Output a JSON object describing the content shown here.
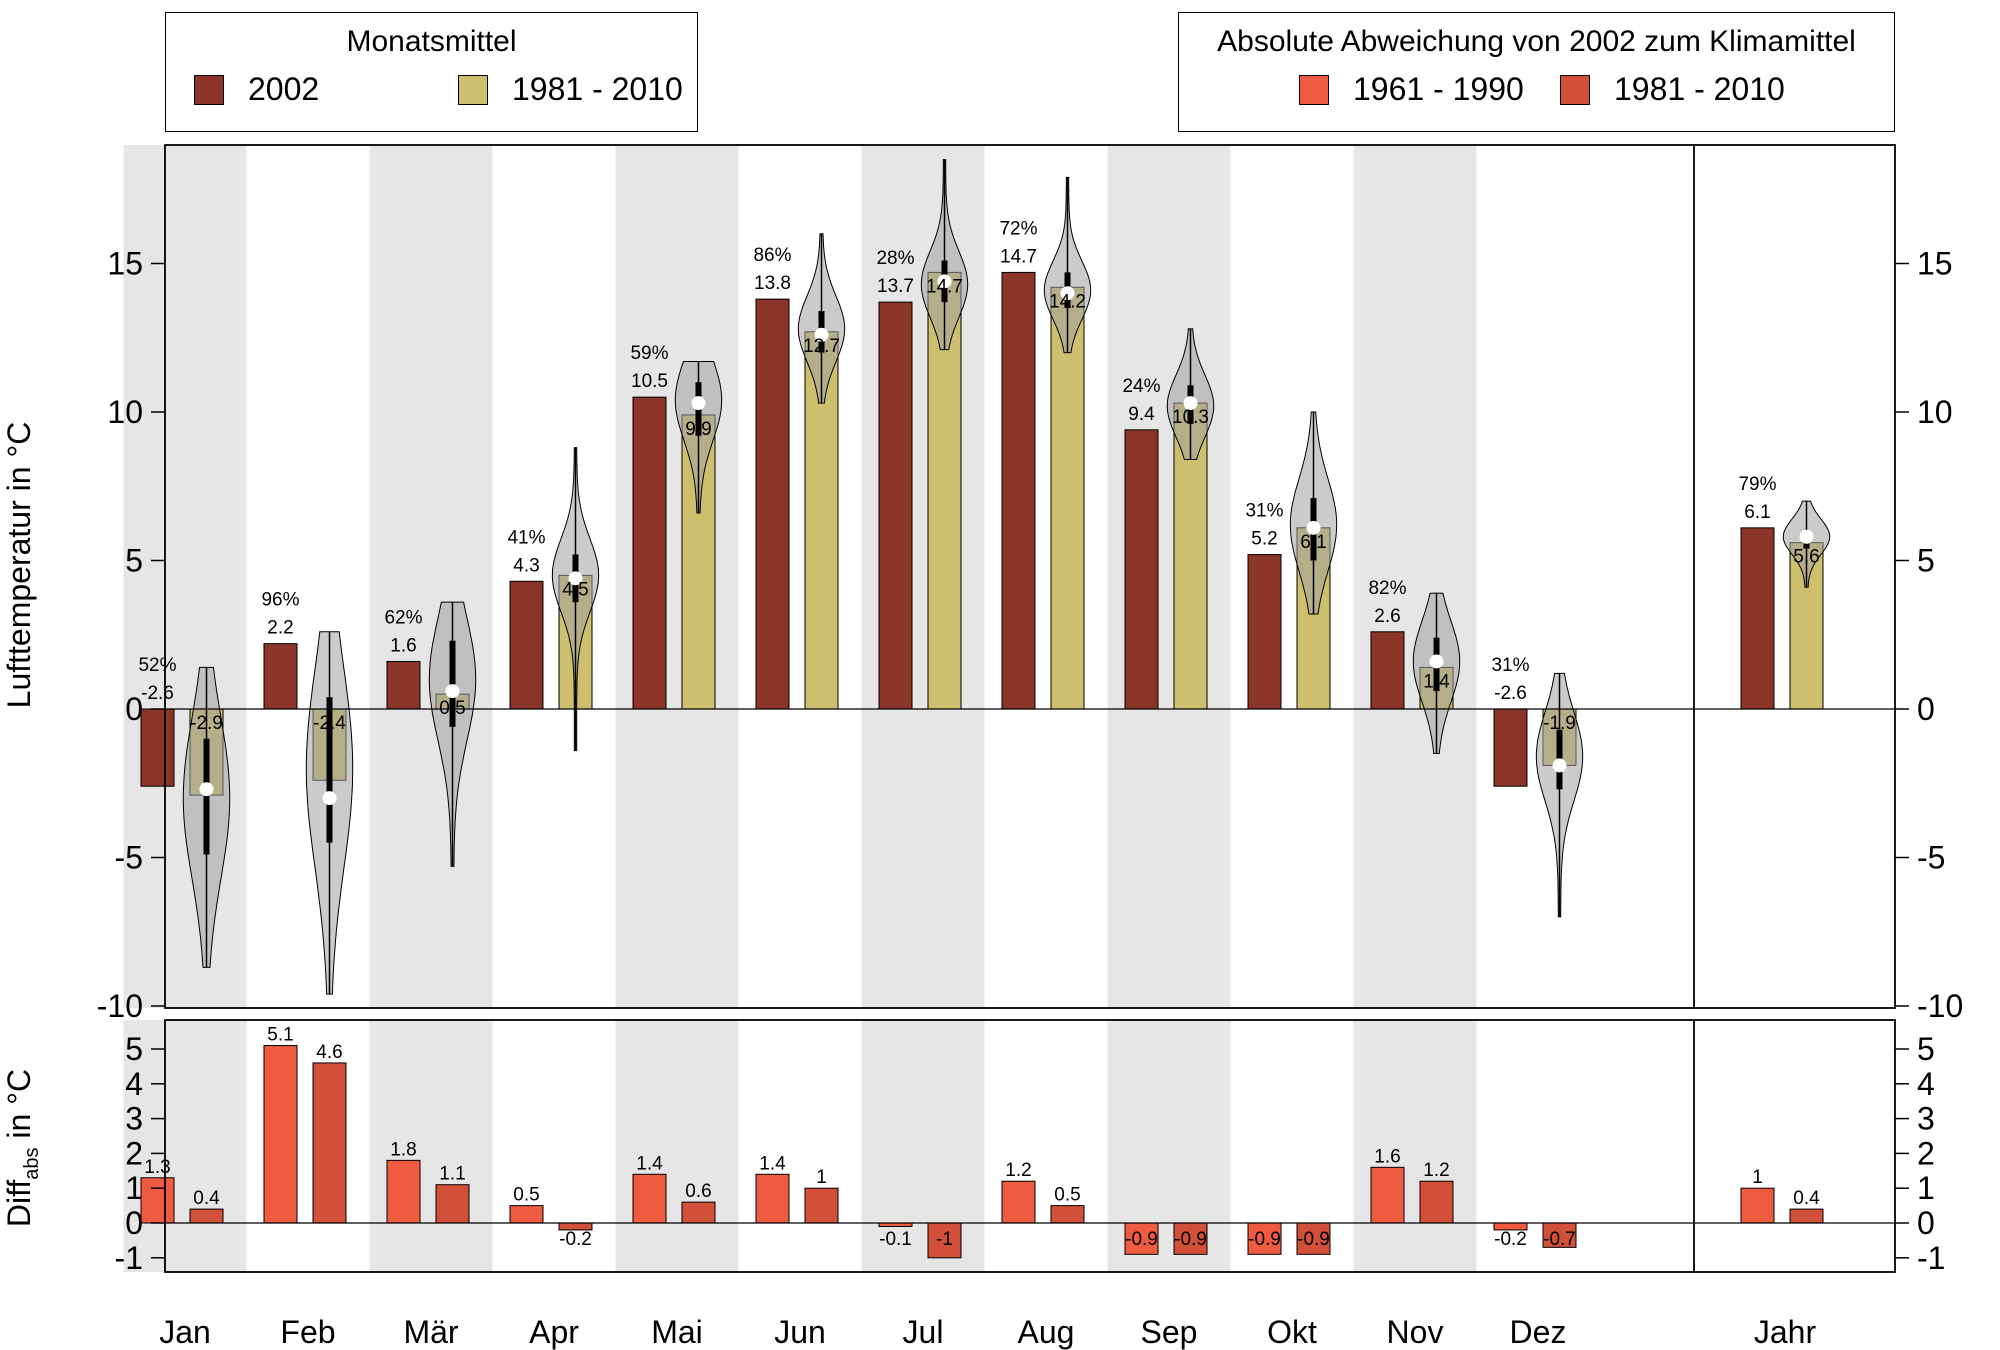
{
  "legend_left": {
    "title": "Monatsmittel",
    "items": [
      {
        "label": "2002",
        "color": "#8b3428"
      },
      {
        "label": "1981 - 2010",
        "color": "#cdbf6e"
      }
    ]
  },
  "legend_right": {
    "title": "Absolute Abweichung von 2002 zum Klimamittel",
    "items": [
      {
        "label": "1961 - 1990",
        "color": "#ef5b40"
      },
      {
        "label": "1981 - 2010",
        "color": "#d2503a"
      }
    ]
  },
  "axis": {
    "y_main_label": "Lufttemperatur in °C",
    "y_diff_label_main": "Diff",
    "y_diff_label_sub": "abs",
    "y_diff_label_unit": " in °C"
  },
  "chart_data": [
    {
      "type": "bar",
      "categories": [
        "Jan",
        "Feb",
        "Mär",
        "Apr",
        "Mai",
        "Jun",
        "Jul",
        "Aug",
        "Sep",
        "Okt",
        "Nov",
        "Dez",
        "Jahr"
      ],
      "ylim": [
        -10,
        18.5
      ],
      "yticks": [
        -10,
        -5,
        0,
        5,
        10,
        15
      ],
      "series": [
        {
          "name": "2002",
          "color": "#8b3428",
          "values": [
            -2.6,
            2.2,
            1.6,
            4.3,
            10.5,
            13.8,
            13.7,
            14.7,
            9.4,
            5.2,
            2.6,
            -2.6,
            6.1
          ]
        },
        {
          "name": "1981 - 2010",
          "color": "#cdbf6e",
          "values": [
            -2.9,
            -2.4,
            0.5,
            4.5,
            9.9,
            12.7,
            14.7,
            14.2,
            10.3,
            6.1,
            1.4,
            -1.9,
            5.6
          ]
        }
      ],
      "percentiles": [
        "52%",
        "96%",
        "62%",
        "41%",
        "59%",
        "86%",
        "28%",
        "72%",
        "24%",
        "31%",
        "82%",
        "31%",
        "79%"
      ],
      "violins": [
        {
          "min": -8.7,
          "max": 1.4,
          "median": -2.7,
          "q1": -4.9,
          "q3": -1.0,
          "peak": -3.0
        },
        {
          "min": -9.6,
          "max": 2.6,
          "median": -3.0,
          "q1": -4.5,
          "q3": 0.4,
          "peak": -2.0
        },
        {
          "min": -5.3,
          "max": 3.6,
          "median": 0.6,
          "q1": -0.6,
          "q3": 2.3,
          "peak": 1.0
        },
        {
          "min": -1.4,
          "max": 8.8,
          "median": 4.4,
          "q1": 3.6,
          "q3": 5.2,
          "peak": 4.5
        },
        {
          "min": 6.6,
          "max": 11.7,
          "median": 10.3,
          "q1": 9.2,
          "q3": 11.0,
          "peak": 10.4
        },
        {
          "min": 10.3,
          "max": 16.0,
          "median": 12.6,
          "q1": 12.0,
          "q3": 13.4,
          "peak": 12.8
        },
        {
          "min": 12.1,
          "max": 18.5,
          "median": 14.4,
          "q1": 13.7,
          "q3": 15.1,
          "peak": 14.3
        },
        {
          "min": 12.0,
          "max": 17.9,
          "median": 14.0,
          "q1": 13.5,
          "q3": 14.7,
          "peak": 14.1
        },
        {
          "min": 8.4,
          "max": 12.8,
          "median": 10.3,
          "q1": 9.6,
          "q3": 10.9,
          "peak": 10.2
        },
        {
          "min": 3.2,
          "max": 10.0,
          "median": 6.1,
          "q1": 5.0,
          "q3": 7.1,
          "peak": 6.2
        },
        {
          "min": -1.5,
          "max": 3.9,
          "median": 1.6,
          "q1": 0.6,
          "q3": 2.4,
          "peak": 1.6
        },
        {
          "min": -7.0,
          "max": 1.2,
          "median": -1.9,
          "q1": -2.7,
          "q3": -0.7,
          "peak": -1.6
        },
        {
          "min": 4.1,
          "max": 7.0,
          "median": 5.8,
          "q1": 5.4,
          "q3": 6.0,
          "peak": 5.8
        }
      ]
    },
    {
      "type": "bar",
      "categories": [
        "Jan",
        "Feb",
        "Mär",
        "Apr",
        "Mai",
        "Jun",
        "Jul",
        "Aug",
        "Sep",
        "Okt",
        "Nov",
        "Dez",
        "Jahr"
      ],
      "ylim": [
        -1.5,
        5.6
      ],
      "yticks": [
        -1,
        0,
        1,
        2,
        3,
        4,
        5
      ],
      "series": [
        {
          "name": "1961 - 1990",
          "color": "#ef5b40",
          "values": [
            1.3,
            5.1,
            1.8,
            0.5,
            1.4,
            1.4,
            -0.1,
            1.2,
            -0.9,
            -0.9,
            1.6,
            -0.2,
            1.0
          ]
        },
        {
          "name": "1981 - 2010",
          "color": "#d2503a",
          "values": [
            0.4,
            4.6,
            1.1,
            -0.2,
            0.6,
            1.0,
            -1.0,
            0.5,
            -0.9,
            -0.9,
            1.2,
            -0.7,
            0.4
          ]
        }
      ]
    }
  ]
}
